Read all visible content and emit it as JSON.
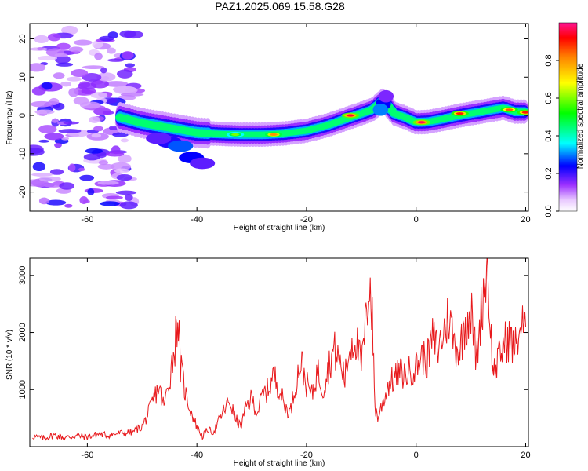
{
  "figure": {
    "title": "PAZ1.2025.069.15.58.G28"
  },
  "chart_data": [
    {
      "type": "heatmap",
      "xlabel": "Height of straight line (km)",
      "ylabel": "Frequency (Hz)",
      "xlim": [
        -70.5,
        20.5
      ],
      "ylim": [
        -25,
        24
      ],
      "x_ticks": [
        -60,
        -40,
        -20,
        0,
        20
      ],
      "y_ticks": [
        -20,
        -10,
        0,
        10,
        20
      ],
      "colorbar": {
        "label": "Normalized spectral amplitude",
        "range": [
          0,
          1
        ],
        "ticks": [
          0.0,
          0.2,
          0.4,
          0.6,
          0.8
        ],
        "colormap": [
          "#ffffff",
          "#9b30ff",
          "#0000ff",
          "#00ffff",
          "#00ff00",
          "#ffff00",
          "#ff0000",
          "#ff1493"
        ]
      },
      "ridge": {
        "x": [
          -54,
          -50,
          -46,
          -42,
          -40,
          -36,
          -32,
          -28,
          -24,
          -20,
          -16,
          -12,
          -8,
          -6,
          -4,
          -2,
          0,
          2,
          4,
          8,
          12,
          16,
          18,
          20
        ],
        "y": [
          -0.5,
          -2,
          -3,
          -4,
          -4.5,
          -4.8,
          -5,
          -5,
          -4.7,
          -4,
          -2.5,
          -0.5,
          1.5,
          4,
          0.5,
          -0.5,
          -1.8,
          -1.7,
          -1.2,
          0,
          1,
          2,
          1,
          1
        ]
      },
      "hotspots": [
        {
          "x": -12,
          "y": 0,
          "amplitude": 0.95
        },
        {
          "x": 1,
          "y": -1.8,
          "amplitude": 0.97
        },
        {
          "x": 8,
          "y": 0.5,
          "amplitude": 0.9
        },
        {
          "x": 17,
          "y": 1.5,
          "amplitude": 0.85
        },
        {
          "x": 20,
          "y": 0.8,
          "amplitude": 0.9
        },
        {
          "x": -26,
          "y": -5,
          "amplitude": 0.8
        },
        {
          "x": -33,
          "y": -5,
          "amplitude": 0.6
        }
      ]
    },
    {
      "type": "line",
      "xlabel": "Height of straight line (km)",
      "ylabel": "SNR (10 * v/v)",
      "xlim": [
        -70.5,
        20.5
      ],
      "ylim": [
        0,
        3300
      ],
      "x_ticks": [
        -60,
        -40,
        -20,
        0,
        20
      ],
      "y_ticks": [
        1000,
        2000,
        3000
      ],
      "series": [
        {
          "color": "#e8191c",
          "x": [
            -70,
            -68,
            -66,
            -64,
            -62,
            -60,
            -58,
            -56,
            -54,
            -52,
            -50,
            -49,
            -48,
            -47,
            -46,
            -45,
            -44,
            -43.5,
            -43,
            -42,
            -41,
            -40,
            -39,
            -38,
            -37,
            -36,
            -35,
            -34,
            -33,
            -32,
            -31,
            -30,
            -29,
            -28,
            -27,
            -26,
            -25,
            -24,
            -23,
            -22,
            -21,
            -20,
            -19,
            -18,
            -17,
            -16,
            -15,
            -14,
            -13,
            -12,
            -11,
            -10,
            -9,
            -8.5,
            -8,
            -7.5,
            -7,
            -6,
            -5,
            -4,
            -3,
            -2,
            -1,
            0,
            1,
            2,
            3,
            4,
            5,
            6,
            7,
            8,
            9,
            10,
            11,
            12,
            13,
            14,
            15,
            16,
            17,
            18,
            19,
            20
          ],
          "values": [
            180,
            150,
            200,
            160,
            190,
            170,
            220,
            200,
            240,
            250,
            350,
            550,
            800,
            1050,
            700,
            1200,
            1800,
            2350,
            1400,
            900,
            600,
            350,
            180,
            300,
            250,
            450,
            650,
            800,
            500,
            350,
            700,
            850,
            600,
            900,
            1000,
            1250,
            1050,
            700,
            600,
            1100,
            1500,
            1100,
            900,
            1350,
            1000,
            1400,
            1700,
            1500,
            1200,
            1800,
            1900,
            1400,
            2300,
            3000,
            2200,
            700,
            500,
            800,
            1100,
            1200,
            1300,
            1250,
            1350,
            1400,
            1600,
            1500,
            1900,
            1700,
            2000,
            2300,
            1800,
            1700,
            2200,
            2400,
            1500,
            2500,
            3200,
            1300,
            1500,
            1800,
            1900,
            1700,
            2100,
            2100
          ]
        }
      ]
    }
  ]
}
